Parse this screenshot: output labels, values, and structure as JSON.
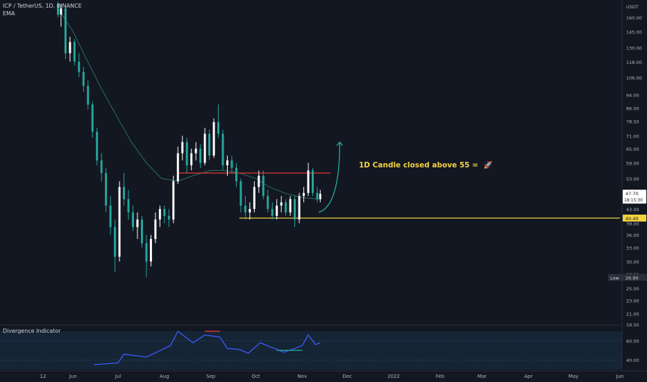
{
  "header": {
    "symbol_line": "ICP / TetherUS, 1D, BINANCE",
    "indicator": "EMA"
  },
  "annotation": {
    "text": "1D Candle closed above 55 =",
    "emoji_icon": "rocket-icon"
  },
  "oscillator": {
    "title": "Divergence Indicator",
    "ticks": [
      "60.00",
      "40.00"
    ]
  },
  "colors": {
    "background": "#131722",
    "bull": "#ffffff",
    "bear": "#26a69a",
    "ema": "#2a6f63",
    "resistance": "#e53935",
    "support": "#f2d33f",
    "osc_line": "#3d5afe",
    "osc_band": "#1a3e5c",
    "arrow": "#26a69a",
    "price_label_bg": "#ffffff",
    "support_label_bg": "#f2d33f",
    "low_label_bg": "#2a2e39"
  },
  "price_axis": {
    "unit": "USDT",
    "ticks": [
      "160.00",
      "145.00",
      "130.00",
      "118.00",
      "106.00",
      "94.00",
      "86.00",
      "78.50",
      "71.00",
      "65.00",
      "59.00",
      "53.00",
      "48.00",
      "43.00",
      "39.00",
      "36.00",
      "33.00",
      "30.00",
      "27.50",
      "25.00",
      "23.00",
      "21.00",
      "19.50"
    ],
    "current_price": "47.70",
    "countdown": "18:15:30",
    "support_label": "40.40",
    "low_label": "Low",
    "low_value": "26.90"
  },
  "time_axis": {
    "ticks": [
      "12",
      "Jun",
      "Jul",
      "Aug",
      "Sep",
      "Oct",
      "Nov",
      "Dec",
      "2022",
      "Feb",
      "Mar",
      "Apr",
      "May",
      "Jun"
    ]
  },
  "chart_data": {
    "type": "candlestick",
    "title": "ICP / TetherUS, 1D, BINANCE",
    "ylabel": "USDT",
    "y_scale": "log",
    "ylim": [
      19.5,
      175
    ],
    "x_range": [
      "2021-05-12",
      "2022-06-01"
    ],
    "series": [
      {
        "name": "EMA",
        "type": "line",
        "points": [
          [
            "2021-05-22",
            170
          ],
          [
            "2021-06-01",
            145
          ],
          [
            "2021-06-10",
            120
          ],
          [
            "2021-06-20",
            98
          ],
          [
            "2021-07-01",
            80
          ],
          [
            "2021-07-10",
            68
          ],
          [
            "2021-07-20",
            59
          ],
          [
            "2021-07-30",
            53
          ],
          [
            "2021-08-10",
            52
          ],
          [
            "2021-08-20",
            54
          ],
          [
            "2021-09-01",
            56
          ],
          [
            "2021-09-10",
            56
          ],
          [
            "2021-09-20",
            55
          ],
          [
            "2021-10-01",
            53
          ],
          [
            "2021-10-10",
            50
          ],
          [
            "2021-10-20",
            48
          ],
          [
            "2021-11-01",
            46.5
          ],
          [
            "2021-11-12",
            46
          ]
        ]
      },
      {
        "name": "Divergence Indicator",
        "type": "oscillator",
        "points": [
          [
            "2021-06-15",
            35
          ],
          [
            "2021-07-01",
            37
          ],
          [
            "2021-07-05",
            46
          ],
          [
            "2021-07-20",
            43
          ],
          [
            "2021-07-28",
            49
          ],
          [
            "2021-08-05",
            55
          ],
          [
            "2021-08-10",
            70
          ],
          [
            "2021-08-20",
            58
          ],
          [
            "2021-08-28",
            66
          ],
          [
            "2021-09-07",
            64
          ],
          [
            "2021-09-12",
            52
          ],
          [
            "2021-09-20",
            51
          ],
          [
            "2021-09-26",
            47
          ],
          [
            "2021-10-04",
            58
          ],
          [
            "2021-10-10",
            54
          ],
          [
            "2021-10-20",
            48
          ],
          [
            "2021-11-01",
            55
          ],
          [
            "2021-11-05",
            66
          ],
          [
            "2021-11-10",
            56
          ],
          [
            "2021-11-13",
            58
          ]
        ]
      }
    ],
    "horizontal_lines": [
      {
        "name": "resistance",
        "value": 55,
        "from": "2021-08-10",
        "to": "2021-11-20"
      },
      {
        "name": "support",
        "value": 40.4,
        "from": "2021-09-20",
        "to": "2022-06-01"
      }
    ],
    "candles": [
      [
        "2021-05-22",
        175,
        178,
        160,
        163
      ],
      [
        "2021-05-24",
        163,
        175,
        150,
        170
      ],
      [
        "2021-05-27",
        170,
        172,
        120,
        125
      ],
      [
        "2021-05-30",
        125,
        140,
        118,
        135
      ],
      [
        "2021-06-02",
        135,
        138,
        115,
        118
      ],
      [
        "2021-06-05",
        118,
        125,
        106,
        110
      ],
      [
        "2021-06-08",
        110,
        114,
        96,
        100
      ],
      [
        "2021-06-11",
        100,
        104,
        85,
        88
      ],
      [
        "2021-06-14",
        88,
        90,
        70,
        73
      ],
      [
        "2021-06-17",
        73,
        75,
        58,
        60
      ],
      [
        "2021-06-20",
        60,
        63,
        52,
        55
      ],
      [
        "2021-06-23",
        55,
        57,
        42,
        44
      ],
      [
        "2021-06-26",
        44,
        47,
        36,
        38
      ],
      [
        "2021-06-29",
        38,
        40,
        28,
        31
      ],
      [
        "2021-07-02",
        31,
        52,
        30,
        50
      ],
      [
        "2021-07-05",
        50,
        55,
        44,
        46
      ],
      [
        "2021-07-08",
        46,
        49,
        40,
        42
      ],
      [
        "2021-07-11",
        42,
        44,
        37,
        38
      ],
      [
        "2021-07-14",
        38,
        42,
        35,
        40
      ],
      [
        "2021-07-17",
        40,
        41,
        33,
        34
      ],
      [
        "2021-07-20",
        34,
        36,
        27,
        30
      ],
      [
        "2021-07-23",
        30,
        36,
        29,
        35
      ],
      [
        "2021-07-26",
        35,
        42,
        34,
        40
      ],
      [
        "2021-07-29",
        40,
        44,
        38,
        43
      ],
      [
        "2021-08-01",
        43,
        44,
        39,
        41
      ],
      [
        "2021-08-04",
        41,
        43,
        38,
        40
      ],
      [
        "2021-08-07",
        40,
        54,
        39,
        52
      ],
      [
        "2021-08-10",
        52,
        66,
        51,
        63
      ],
      [
        "2021-08-13",
        63,
        71,
        60,
        68
      ],
      [
        "2021-08-16",
        68,
        70,
        55,
        58
      ],
      [
        "2021-08-19",
        58,
        65,
        56,
        63
      ],
      [
        "2021-08-22",
        63,
        68,
        60,
        65
      ],
      [
        "2021-08-25",
        65,
        67,
        57,
        59
      ],
      [
        "2021-08-28",
        59,
        75,
        58,
        72
      ],
      [
        "2021-08-31",
        72,
        74,
        60,
        62
      ],
      [
        "2021-09-03",
        62,
        80,
        61,
        78
      ],
      [
        "2021-09-06",
        78,
        88,
        70,
        72
      ],
      [
        "2021-09-09",
        72,
        74,
        56,
        58
      ],
      [
        "2021-09-12",
        58,
        62,
        54,
        60
      ],
      [
        "2021-09-15",
        60,
        62,
        55,
        57
      ],
      [
        "2021-09-18",
        57,
        59,
        50,
        52
      ],
      [
        "2021-09-21",
        52,
        53,
        42,
        44
      ],
      [
        "2021-09-24",
        44,
        47,
        40,
        42
      ],
      [
        "2021-09-27",
        42,
        45,
        40,
        43
      ],
      [
        "2021-09-30",
        43,
        52,
        42,
        50
      ],
      [
        "2021-10-03",
        50,
        56,
        48,
        54
      ],
      [
        "2021-10-06",
        54,
        56,
        46,
        47
      ],
      [
        "2021-10-09",
        47,
        49,
        42,
        43
      ],
      [
        "2021-10-12",
        43,
        45,
        40,
        41
      ],
      [
        "2021-10-15",
        41,
        46,
        40,
        44
      ],
      [
        "2021-10-18",
        44,
        47,
        42,
        45
      ],
      [
        "2021-10-21",
        45,
        46,
        41,
        42
      ],
      [
        "2021-10-24",
        42,
        47,
        41,
        46
      ],
      [
        "2021-10-27",
        46,
        47,
        38,
        40
      ],
      [
        "2021-10-30",
        40,
        48,
        39,
        47
      ],
      [
        "2021-11-02",
        47,
        50,
        45,
        48
      ],
      [
        "2021-11-05",
        48,
        59,
        47,
        56
      ],
      [
        "2021-11-08",
        56,
        57,
        47,
        48
      ],
      [
        "2021-11-11",
        48,
        50,
        45,
        46
      ],
      [
        "2021-11-13",
        46,
        49,
        45,
        47.7
      ]
    ]
  }
}
